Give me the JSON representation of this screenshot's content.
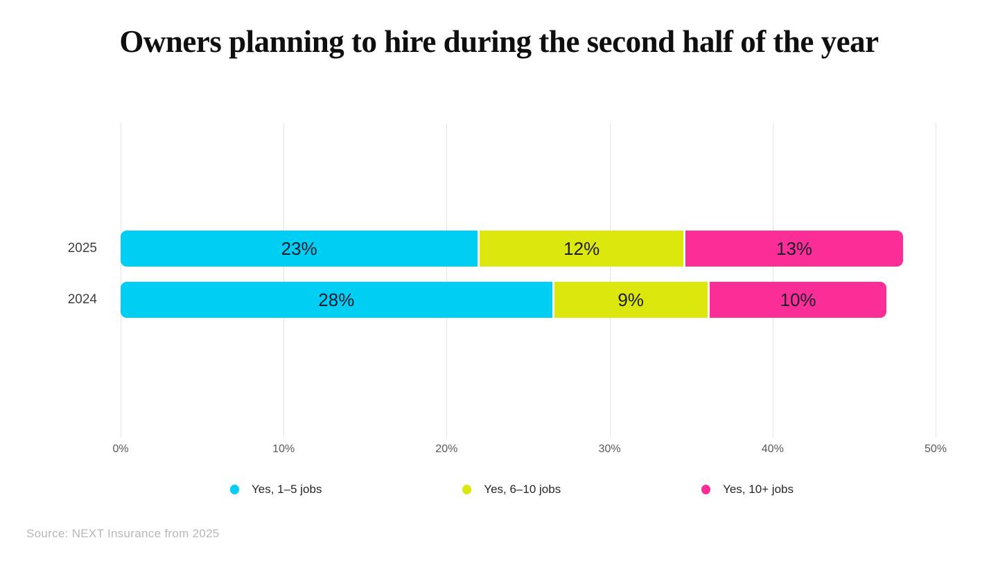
{
  "title": "Owners planning to hire during the second half of the year",
  "source": "Source: NEXT Insurance from 2025",
  "chart_data": {
    "type": "bar",
    "orientation": "horizontal",
    "stacked": true,
    "title": "Owners planning to hire during the second half of the year",
    "categories": [
      "2025",
      "2024"
    ],
    "series": [
      {
        "name": "Yes, 1–5 jobs",
        "color": "#00CEF2",
        "values": [
          23,
          28
        ]
      },
      {
        "name": "Yes, 6–10 jobs",
        "color": "#DCE70D",
        "values": [
          12,
          9
        ]
      },
      {
        "name": "Yes, 10+ jobs",
        "color": "#FA2E96",
        "values": [
          13,
          10
        ]
      }
    ],
    "data_labels": [
      [
        "23%",
        "12%",
        "13%"
      ],
      [
        "28%",
        "9%",
        "10%"
      ]
    ],
    "xlabel": "",
    "ylabel": "",
    "xlim": [
      0,
      50
    ],
    "x_ticks": [
      {
        "value": 0,
        "label": "0%"
      },
      {
        "value": 10,
        "label": "10%"
      },
      {
        "value": 20,
        "label": "20%"
      },
      {
        "value": 30,
        "label": "30%"
      },
      {
        "value": 40,
        "label": "40%"
      },
      {
        "value": 50,
        "label": "50%"
      }
    ],
    "grid": true,
    "legend_position": "bottom",
    "gridline_color": "#e3e3e3",
    "bar_label_color": "#1c1c2e",
    "axis_label_color": "#585858",
    "category_label_color": "#3e3e3e"
  }
}
